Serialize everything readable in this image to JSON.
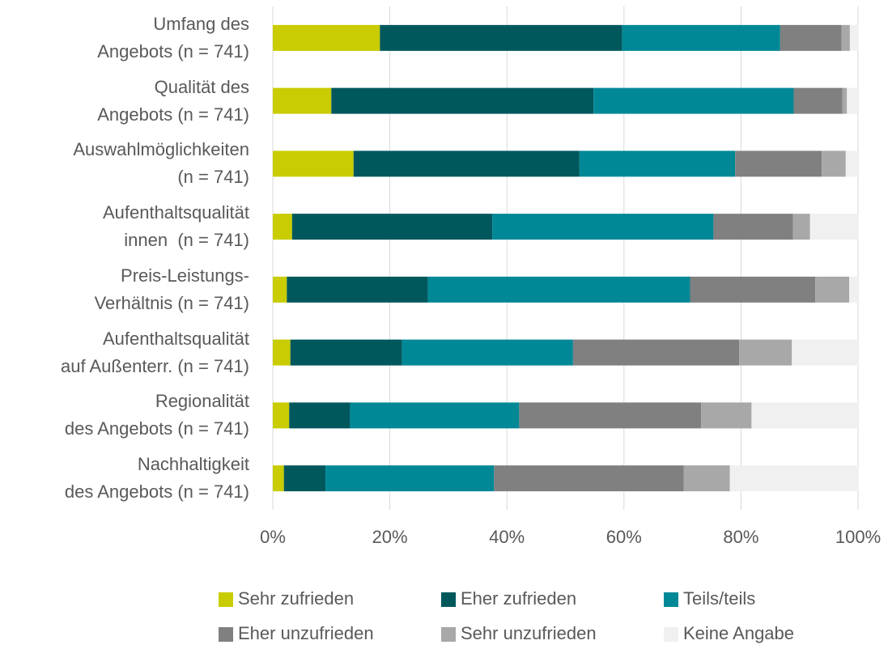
{
  "chart_data": {
    "type": "stacked_barh",
    "categories": [
      "Umfang des\nAngebots (n = 741)",
      "Qualität des\nAngebots (n = 741)",
      "Auswahlmöglichkeiten\n(n = 741)",
      "Aufenthaltsqualität\ninnen  (n = 741)",
      "Preis-Leistungs-\nVerhältnis (n = 741)",
      "Aufenthaltsqualität\nauf Außenterr. (n = 741)",
      "Regionalität\ndes Angebots (n = 741)",
      "Nachhaltigkeit\ndes Angebots (n = 741)"
    ],
    "series": [
      {
        "name": "Sehr zufrieden",
        "color": "#c9cc00",
        "values": [
          18.3,
          10.0,
          13.8,
          3.3,
          2.4,
          3.0,
          2.8,
          1.9
        ]
      },
      {
        "name": "Eher zufrieden",
        "color": "#00585d",
        "values": [
          41.4,
          44.8,
          38.6,
          34.2,
          24.1,
          19.1,
          10.4,
          7.1
        ]
      },
      {
        "name": "Teils/teils",
        "color": "#008896",
        "values": [
          27.0,
          34.2,
          26.6,
          37.8,
          44.8,
          29.2,
          28.9,
          28.8
        ]
      },
      {
        "name": "Eher unzufrieden",
        "color": "#808080",
        "values": [
          10.5,
          8.3,
          14.8,
          13.6,
          21.4,
          28.4,
          31.1,
          32.4
        ]
      },
      {
        "name": "Sehr unzufrieden",
        "color": "#a8a8a8",
        "values": [
          1.4,
          0.8,
          4.1,
          2.9,
          5.8,
          9.0,
          8.6,
          7.9
        ]
      },
      {
        "name": "Keine Angabe",
        "color": "#f0f0f0",
        "values": [
          1.5,
          1.9,
          2.1,
          8.3,
          1.5,
          11.3,
          18.2,
          22.0
        ]
      }
    ],
    "xlim": [
      0,
      100
    ],
    "xticks": [
      {
        "value": 0,
        "label": "0%"
      },
      {
        "value": 20,
        "label": "20%"
      },
      {
        "value": 40,
        "label": "40%"
      },
      {
        "value": 60,
        "label": "60%"
      },
      {
        "value": 80,
        "label": "80%"
      },
      {
        "value": 100,
        "label": "100%"
      }
    ],
    "grid": true,
    "legend": "bottom"
  }
}
